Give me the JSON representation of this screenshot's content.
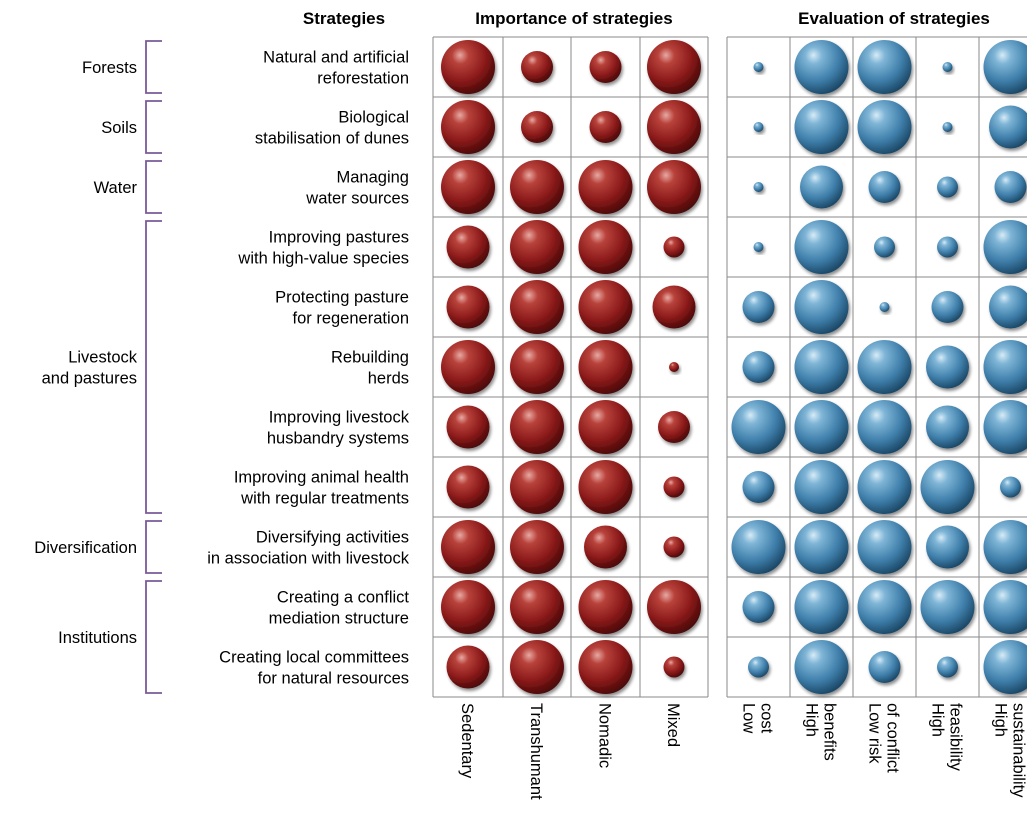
{
  "chart_data": {
    "type": "bubble-matrix",
    "headers": {
      "strategies": "Strategies",
      "importance": "Importance of strategies",
      "evaluation": "Evaluation of strategies"
    },
    "groups": [
      {
        "name": "Forests",
        "rows": [
          0
        ]
      },
      {
        "name": "Soils",
        "rows": [
          1
        ]
      },
      {
        "name": "Water",
        "rows": [
          2
        ]
      },
      {
        "name": "Livestock\nand pastures",
        "rows": [
          3,
          4,
          5,
          6,
          7
        ]
      },
      {
        "name": "Diversification",
        "rows": [
          8
        ]
      },
      {
        "name": "Institutions",
        "rows": [
          9,
          10
        ]
      }
    ],
    "rows": [
      "Natural and artificial\nreforestation",
      "Biological\nstabilisation of dunes",
      "Managing\nwater sources",
      "Improving pastures\nwith high-value species",
      "Protecting pasture\nfor regeneration",
      "Rebuilding\nherds",
      "Improving livestock\nhusbandry systems",
      "Improving animal health\nwith regular treatments",
      "Diversifying activities\nin association with livestock",
      "Creating a conflict\nmediation structure",
      "Creating local committees\nfor natural resources"
    ],
    "importance_columns": [
      "Sedentary",
      "Transhumant",
      "Nomadic",
      "Mixed"
    ],
    "evaluation_columns": [
      "Low\ncost",
      "High\nbenefits",
      "Low risk\nof conflict",
      "High\nfeasibility",
      "High\nsustainability"
    ],
    "importance_color": "#8b1a1a",
    "evaluation_color": "#3f7fab",
    "scale": "relative bubble size 1-5 (unlabeled)",
    "importance_values": [
      [
        5,
        3,
        3,
        5
      ],
      [
        5,
        3,
        3,
        5
      ],
      [
        5,
        5,
        5,
        5
      ],
      [
        4,
        5,
        5,
        2
      ],
      [
        4,
        5,
        5,
        4
      ],
      [
        5,
        5,
        5,
        1
      ],
      [
        4,
        5,
        5,
        3
      ],
      [
        4,
        5,
        5,
        2
      ],
      [
        5,
        5,
        4,
        2
      ],
      [
        5,
        5,
        5,
        5
      ],
      [
        4,
        5,
        5,
        2
      ]
    ],
    "evaluation_values": [
      [
        1,
        5,
        5,
        1,
        5
      ],
      [
        1,
        5,
        5,
        1,
        4
      ],
      [
        1,
        4,
        3,
        2,
        3
      ],
      [
        1,
        5,
        2,
        2,
        5
      ],
      [
        3,
        5,
        1,
        3,
        4
      ],
      [
        3,
        5,
        5,
        4,
        5
      ],
      [
        5,
        5,
        5,
        4,
        5
      ],
      [
        3,
        5,
        5,
        5,
        2
      ],
      [
        5,
        5,
        5,
        4,
        5
      ],
      [
        3,
        5,
        5,
        5,
        5
      ],
      [
        2,
        5,
        3,
        2,
        5
      ]
    ]
  }
}
